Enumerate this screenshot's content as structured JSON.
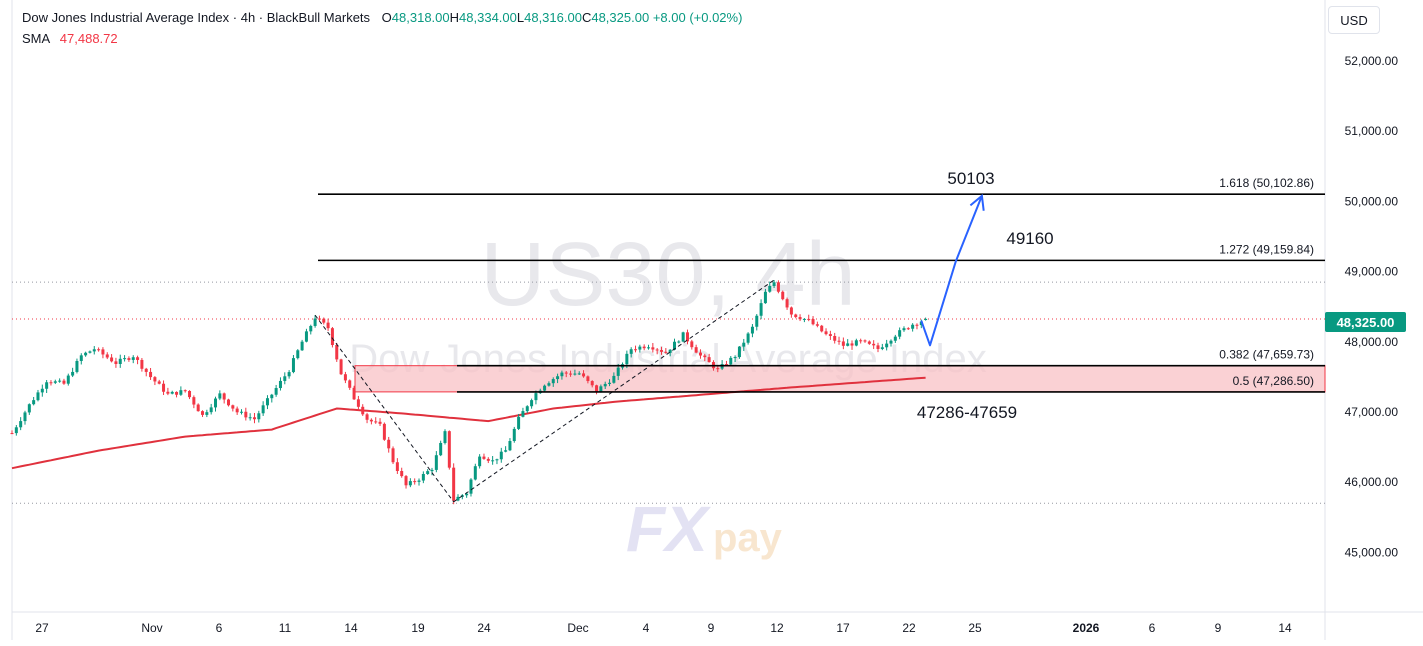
{
  "header": {
    "title": "Dow Jones Industrial Average Index · 4h · BlackBull Markets",
    "ohlc": [
      {
        "label": "O",
        "value": "48,318.00"
      },
      {
        "label": "H",
        "value": "48,334.00"
      },
      {
        "label": "L",
        "value": "48,316.00"
      },
      {
        "label": "C",
        "value": "48,325.00"
      }
    ],
    "change": "+8.00 (+0.02%)",
    "sma_label": "SMA",
    "sma_value": "47,488.72"
  },
  "currency": "USD",
  "current_price_label": "48,325.00",
  "watermark": {
    "symbol": "US30, 4h",
    "name": "Dow Jones Industrial Average Index",
    "brand_fx": "FX",
    "brand_pay": "pay"
  },
  "colors": {
    "up": "#089981",
    "down": "#f23645",
    "sma": "#e0313d",
    "zone_fill": "#f8c1c6",
    "projection": "#2962ff",
    "level_line": "#000000"
  },
  "chart_data": {
    "type": "candlestick",
    "title": "Dow Jones Industrial Average Index · 4h · BlackBull Markets",
    "ylim": [
      44500,
      52700
    ],
    "y_ticks": [
      45000,
      46000,
      47000,
      48000,
      49000,
      50000,
      51000,
      52000
    ],
    "y_tick_labels": [
      "45,000.00",
      "46,000.00",
      "47,000.00",
      "48,000.00",
      "49,000.00",
      "50,000.00",
      "51,000.00",
      "52,000.00"
    ],
    "x_labels": [
      "27",
      "Nov",
      "6",
      "11",
      "14",
      "19",
      "24",
      "Dec",
      "4",
      "9",
      "12",
      "17",
      "22",
      "25",
      "2026",
      "6",
      "9",
      "14"
    ],
    "x_label_bold": "2026",
    "price_anchors": [
      [
        0,
        46700
      ],
      [
        4,
        47100
      ],
      [
        8,
        47450
      ],
      [
        12,
        47400
      ],
      [
        16,
        47800
      ],
      [
        19,
        47900
      ],
      [
        24,
        47700
      ],
      [
        28,
        47800
      ],
      [
        32,
        47500
      ],
      [
        36,
        47250
      ],
      [
        40,
        47300
      ],
      [
        44,
        46950
      ],
      [
        48,
        47250
      ],
      [
        52,
        47000
      ],
      [
        56,
        46900
      ],
      [
        60,
        47250
      ],
      [
        64,
        47600
      ],
      [
        67,
        48000
      ],
      [
        70,
        48350
      ],
      [
        73,
        48200
      ],
      [
        76,
        47550
      ],
      [
        79,
        47200
      ],
      [
        82,
        46900
      ],
      [
        85,
        46800
      ],
      [
        88,
        46300
      ],
      [
        91,
        45950
      ],
      [
        94,
        46050
      ],
      [
        97,
        46200
      ],
      [
        100,
        46700
      ],
      [
        102,
        45750
      ],
      [
        105,
        45850
      ],
      [
        108,
        46400
      ],
      [
        111,
        46300
      ],
      [
        114,
        46450
      ],
      [
        117,
        46900
      ],
      [
        120,
        47200
      ],
      [
        123,
        47400
      ],
      [
        127,
        47550
      ],
      [
        131,
        47550
      ],
      [
        135,
        47300
      ],
      [
        139,
        47500
      ],
      [
        143,
        47900
      ],
      [
        147,
        47950
      ],
      [
        151,
        47850
      ],
      [
        155,
        48100
      ],
      [
        159,
        47800
      ],
      [
        163,
        47600
      ],
      [
        167,
        47800
      ],
      [
        171,
        48200
      ],
      [
        174,
        48700
      ],
      [
        176,
        48850
      ],
      [
        180,
        48400
      ],
      [
        184,
        48300
      ],
      [
        188,
        48100
      ],
      [
        192,
        47950
      ],
      [
        196,
        48000
      ],
      [
        200,
        47900
      ],
      [
        204,
        48100
      ],
      [
        208,
        48250
      ],
      [
        211,
        48320
      ]
    ],
    "last_candle": {
      "open": 48318.0,
      "high": 48334.0,
      "low": 48316.0,
      "close": 48325.0
    },
    "sma": {
      "name": "SMA",
      "value": 47488.72,
      "anchors": [
        [
          0,
          46200
        ],
        [
          20,
          46450
        ],
        [
          40,
          46650
        ],
        [
          60,
          46750
        ],
        [
          75,
          47050
        ],
        [
          90,
          46980
        ],
        [
          110,
          46870
        ],
        [
          125,
          47050
        ],
        [
          140,
          47150
        ],
        [
          160,
          47250
        ],
        [
          180,
          47350
        ],
        [
          200,
          47440
        ],
        [
          211,
          47488.72
        ]
      ]
    },
    "swing_lines": [
      {
        "from": [
          70,
          48380
        ],
        "to": [
          102,
          45720
        ]
      },
      {
        "from": [
          102,
          45720
        ],
        "to": [
          176,
          48880
        ]
      }
    ],
    "fib_levels": [
      {
        "ratio": "1.618",
        "value": 50102.86,
        "label": "1.618 (50,102.86)"
      },
      {
        "ratio": "1.272",
        "value": 49159.84,
        "label": "1.272 (49,159.84)"
      },
      {
        "ratio": "0.382",
        "value": 47659.73,
        "label": "0.382 (47,659.73)"
      },
      {
        "ratio": "0.5",
        "value": 47286.5,
        "label": "0.5 (47,286.50)"
      }
    ],
    "zone": {
      "low": 47286.5,
      "high": 47659.73,
      "label": "47286-47659"
    },
    "annotations": [
      {
        "text": "50103",
        "value": 50103
      },
      {
        "text": "49160",
        "value": 49160
      }
    ],
    "projection_path": [
      [
        210,
        48300
      ],
      [
        212,
        47950
      ],
      [
        218,
        49150
      ],
      [
        224,
        50080
      ]
    ],
    "dotted_levels": [
      48850,
      48325,
      45700
    ]
  }
}
